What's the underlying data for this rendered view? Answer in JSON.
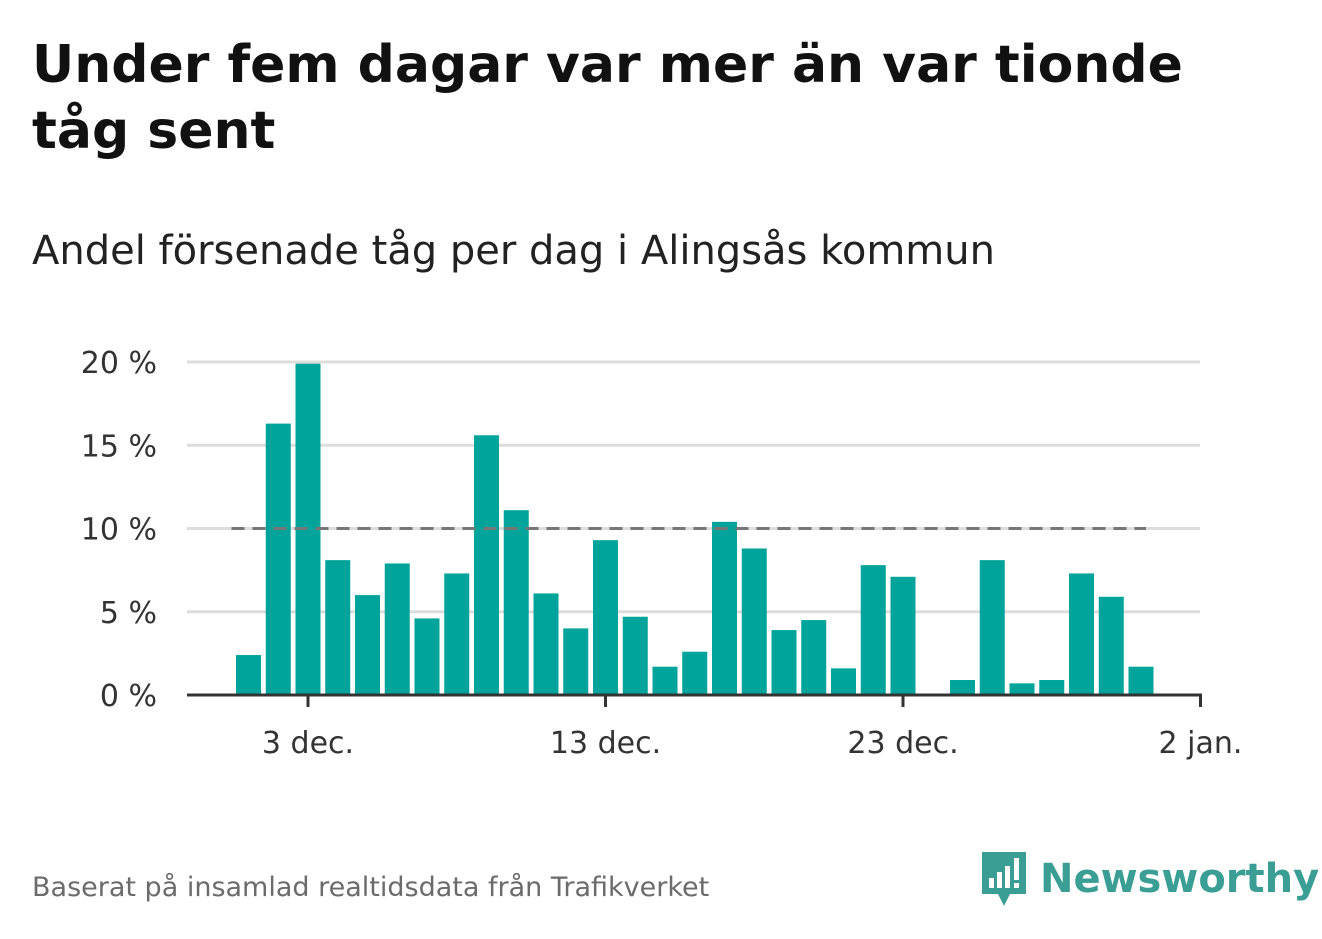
{
  "title": "Under fem dagar var mer än var tionde tåg sent",
  "subtitle": "Andel försenade tåg per dag i Alingsås kommun",
  "source": "Baserat på insamlad realtidsdata från Trafikverket",
  "brand": "Newsworthy",
  "colors": {
    "bar": "#00a49a",
    "reference_line": "#777777",
    "grid": "#dddddd",
    "axis": "#333333",
    "brand": "#3a9e94"
  },
  "chart_data": {
    "type": "bar",
    "x": [
      "1 dec.",
      "2 dec.",
      "3 dec.",
      "4 dec.",
      "5 dec.",
      "6 dec.",
      "7 dec.",
      "8 dec.",
      "9 dec.",
      "10 dec.",
      "11 dec.",
      "12 dec.",
      "13 dec.",
      "14 dec.",
      "15 dec.",
      "16 dec.",
      "17 dec.",
      "18 dec.",
      "19 dec.",
      "20 dec.",
      "21 dec.",
      "22 dec.",
      "23 dec.",
      "24 dec.",
      "25 dec.",
      "26 dec.",
      "27 dec.",
      "28 dec.",
      "29 dec.",
      "30 dec.",
      "31 dec."
    ],
    "values": [
      2.4,
      16.3,
      19.9,
      8.1,
      6.0,
      7.9,
      4.6,
      7.3,
      15.6,
      11.1,
      6.1,
      4.0,
      9.3,
      4.7,
      1.7,
      2.6,
      10.4,
      8.8,
      3.9,
      4.5,
      1.6,
      7.8,
      7.1,
      0,
      0.9,
      8.1,
      0.7,
      0.9,
      7.3,
      5.9,
      1.7
    ],
    "x_ticks": [
      "3 dec.",
      "13 dec.",
      "23 dec.",
      "2 jan."
    ],
    "y_ticks": [
      "0 %",
      "5 %",
      "10 %",
      "15 %",
      "20 %"
    ],
    "y_tick_values": [
      0,
      5,
      10,
      15,
      20
    ],
    "ylim": [
      0,
      20
    ],
    "reference_line": 10,
    "reference_line_style": "dashed",
    "grid": true
  }
}
